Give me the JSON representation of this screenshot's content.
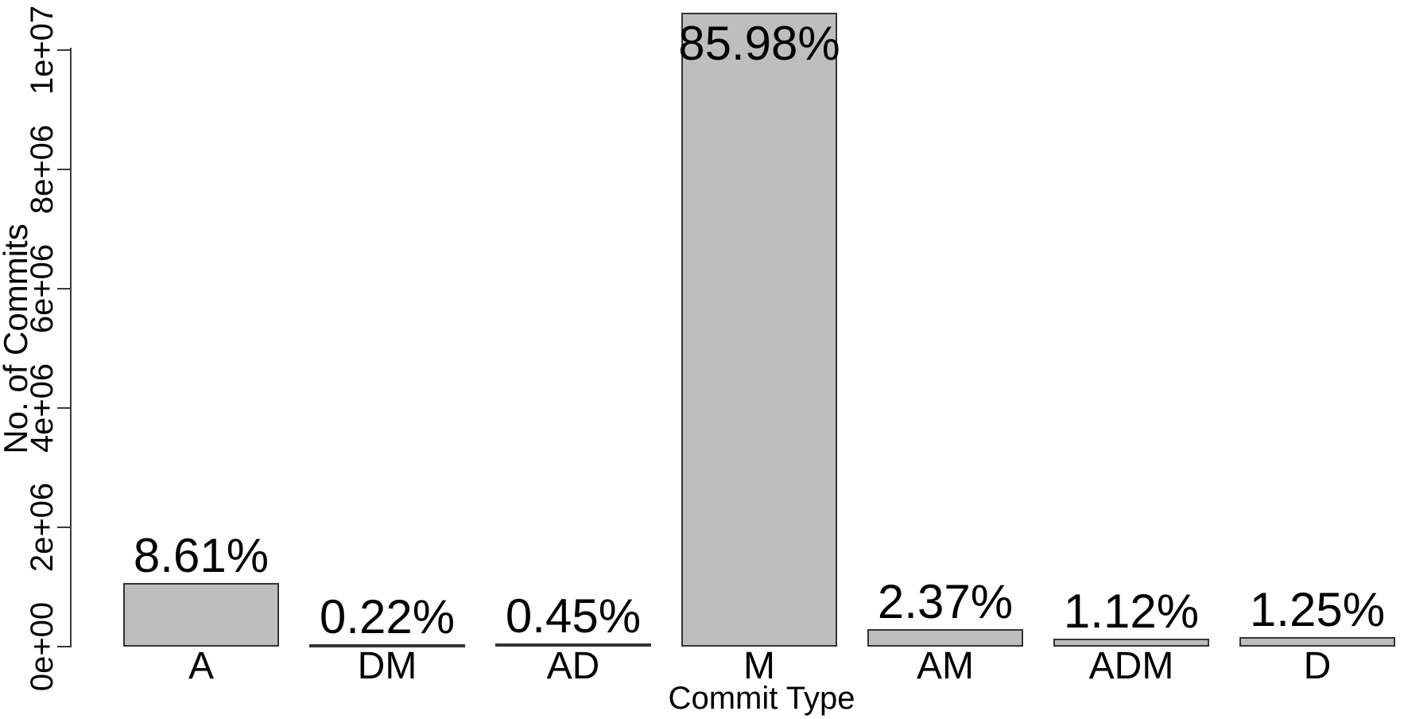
{
  "figure": {
    "kind": "r-base-barplot",
    "background_color": "#ffffff",
    "text_color": "#000000"
  },
  "chart_data": {
    "type": "bar",
    "title": "",
    "xlabel": "Commit Type",
    "ylabel": "No. of Commits",
    "categories": [
      "A",
      "DM",
      "AD",
      "M",
      "AM",
      "ADM",
      "D"
    ],
    "values": [
      1064000,
      27200,
      55600,
      10627000,
      293000,
      138400,
      154500
    ],
    "bar_labels": [
      "8.61%",
      "0.22%",
      "0.45%",
      "85.98%",
      "2.37%",
      "1.12%",
      "1.25%"
    ],
    "y_ticks": {
      "labels": [
        "0e+00",
        "2e+06",
        "4e+06",
        "6e+06",
        "8e+06",
        "1e+07"
      ],
      "values": [
        0,
        2000000,
        4000000,
        6000000,
        8000000,
        10000000
      ]
    },
    "ylim": [
      0,
      10000000
    ],
    "grid": false,
    "legend": false,
    "bar_color": "#bebebe",
    "bar_border_color": "#333333",
    "axis_color": "#3a3a3a"
  }
}
